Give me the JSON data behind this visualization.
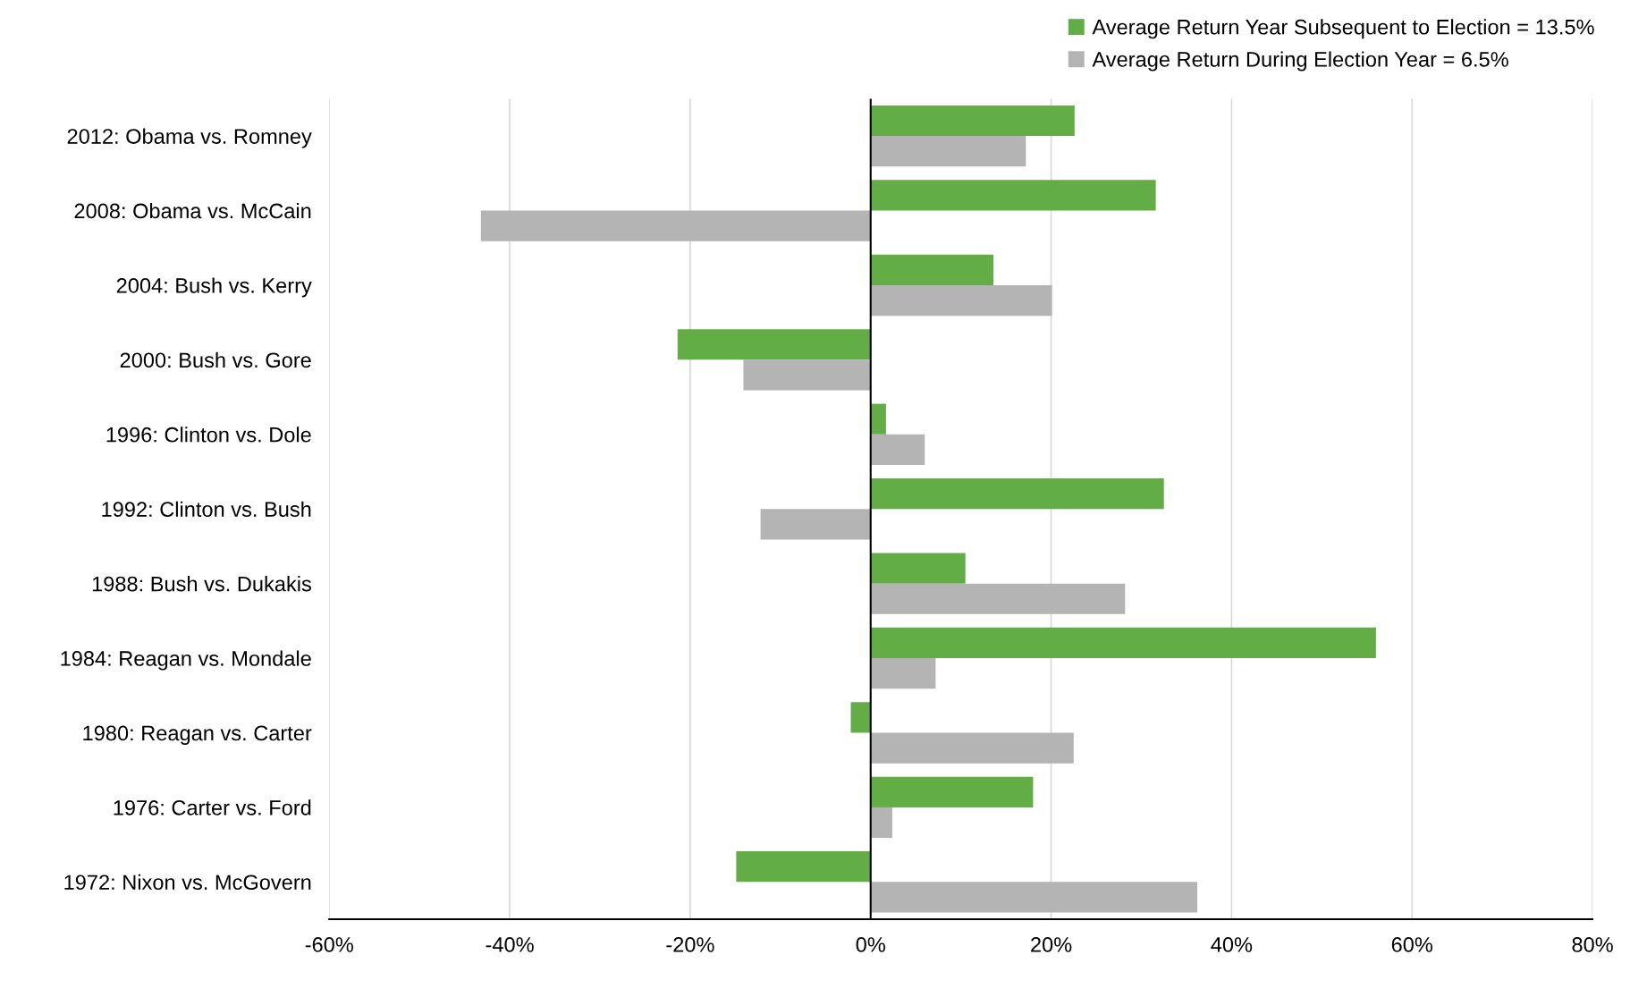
{
  "chart_data": {
    "type": "bar",
    "orientation": "horizontal",
    "categories": [
      "2012: Obama vs. Romney",
      "2008: Obama vs. McCain",
      "2004: Bush vs. Kerry",
      "2000: Bush vs. Gore",
      "1996: Clinton vs. Dole",
      "1992: Clinton vs. Bush",
      "1988: Bush vs. Dukakis",
      "1984: Reagan vs. Mondale",
      "1980: Reagan vs. Carter",
      "1976: Carter vs. Ford",
      "1972: Nixon vs. McGovern"
    ],
    "series": [
      {
        "name": "Average Return Year Subsequent to Election = 13.5%",
        "color": "#62ad46",
        "values": [
          22.6,
          31.6,
          13.6,
          -21.4,
          1.7,
          32.5,
          10.5,
          56.0,
          -2.2,
          18.0,
          -14.9
        ]
      },
      {
        "name": "Average Return During Election Year = 6.5%",
        "color": "#b4b4b4",
        "values": [
          17.2,
          -43.2,
          20.1,
          -14.1,
          6.0,
          -12.2,
          28.2,
          7.2,
          22.5,
          2.4,
          36.2
        ]
      }
    ],
    "xlim": [
      -60,
      80
    ],
    "xticks": [
      {
        "value": -60,
        "label": "-60%"
      },
      {
        "value": -40,
        "label": "-40%"
      },
      {
        "value": -20,
        "label": "-20%"
      },
      {
        "value": 0,
        "label": "0%"
      },
      {
        "value": 20,
        "label": "20%"
      },
      {
        "value": 40,
        "label": "40%"
      },
      {
        "value": 60,
        "label": "60%"
      },
      {
        "value": 80,
        "label": "80%"
      }
    ],
    "ref_lines": [
      {
        "axis": "x",
        "value": 0,
        "color": "#000000"
      }
    ],
    "grid": "x",
    "legend": "top right"
  }
}
